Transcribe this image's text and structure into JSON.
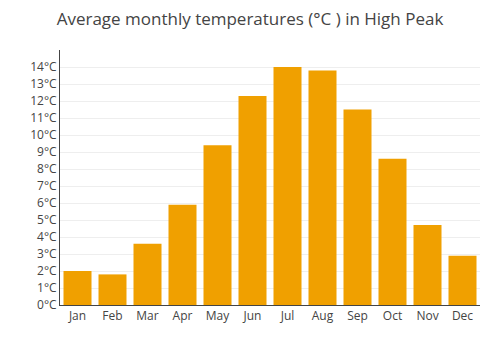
{
  "chart_data": {
    "type": "bar",
    "title": "Average monthly temperatures (°C ) in High Peak",
    "categories": [
      "Jan",
      "Feb",
      "Mar",
      "Apr",
      "May",
      "Jun",
      "Jul",
      "Aug",
      "Sep",
      "Oct",
      "Nov",
      "Dec"
    ],
    "values": [
      2.0,
      1.8,
      3.6,
      5.9,
      9.4,
      12.3,
      14.0,
      13.8,
      11.5,
      8.6,
      4.7,
      2.9
    ],
    "color": "#F0A000",
    "ylim": [
      0,
      15
    ],
    "yticks": [
      {
        "value": 0,
        "label": "0°C"
      },
      {
        "value": 1,
        "label": "1°C"
      },
      {
        "value": 2,
        "label": "2°C"
      },
      {
        "value": 3,
        "label": "3°C"
      },
      {
        "value": 4,
        "label": "4°C"
      },
      {
        "value": 5,
        "label": "5°C"
      },
      {
        "value": 6,
        "label": "6°C"
      },
      {
        "value": 7,
        "label": "7°C"
      },
      {
        "value": 8,
        "label": "8°C"
      },
      {
        "value": 9,
        "label": "9°C"
      },
      {
        "value": 10,
        "label": "10°C"
      },
      {
        "value": 11,
        "label": "11°C"
      },
      {
        "value": 12,
        "label": "12°C"
      },
      {
        "value": 13,
        "label": "13°C"
      },
      {
        "value": 14,
        "label": "14°C"
      }
    ],
    "grid": true
  }
}
